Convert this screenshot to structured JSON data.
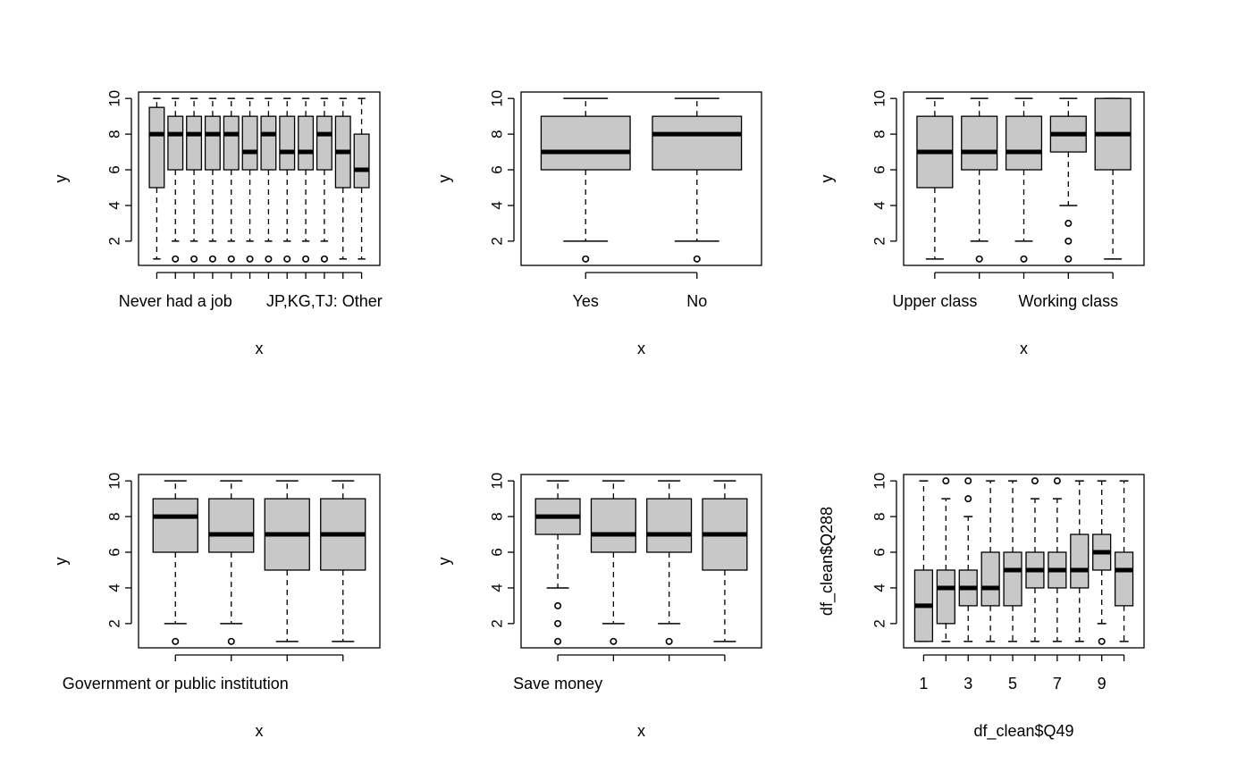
{
  "style": {
    "box_fill": "#c8c8c8",
    "stroke": "#000000",
    "background": "#ffffff"
  },
  "chart_data": [
    {
      "type": "boxplot",
      "xlabel": "x",
      "ylabel": "y",
      "ylim": [
        1,
        10
      ],
      "y_ticks": [
        2,
        4,
        6,
        8,
        10
      ],
      "tick_labels": [
        {
          "index": 1,
          "text": "Never had a job"
        },
        {
          "index": 9,
          "text": "JP,KG,TJ: Other"
        }
      ],
      "boxes": [
        {
          "low": 1,
          "q1": 5,
          "median": 8,
          "q3": 9.5,
          "high": 10,
          "outliers": []
        },
        {
          "low": 2,
          "q1": 6,
          "median": 8,
          "q3": 9,
          "high": 10,
          "outliers": [
            1
          ]
        },
        {
          "low": 2,
          "q1": 6,
          "median": 8,
          "q3": 9,
          "high": 10,
          "outliers": [
            1
          ]
        },
        {
          "low": 2,
          "q1": 6,
          "median": 8,
          "q3": 9,
          "high": 10,
          "outliers": [
            1
          ]
        },
        {
          "low": 2,
          "q1": 6,
          "median": 8,
          "q3": 9,
          "high": 10,
          "outliers": [
            1
          ]
        },
        {
          "low": 2,
          "q1": 6,
          "median": 7,
          "q3": 9,
          "high": 10,
          "outliers": [
            1
          ]
        },
        {
          "low": 2,
          "q1": 6,
          "median": 8,
          "q3": 9,
          "high": 10,
          "outliers": [
            1
          ]
        },
        {
          "low": 2,
          "q1": 6,
          "median": 7,
          "q3": 9,
          "high": 10,
          "outliers": [
            1
          ]
        },
        {
          "low": 2,
          "q1": 6,
          "median": 7,
          "q3": 9,
          "high": 10,
          "outliers": [
            1
          ]
        },
        {
          "low": 2,
          "q1": 6,
          "median": 8,
          "q3": 9,
          "high": 10,
          "outliers": [
            1
          ]
        },
        {
          "low": 1,
          "q1": 5,
          "median": 7,
          "q3": 9,
          "high": 10,
          "outliers": []
        },
        {
          "low": 1,
          "q1": 5,
          "median": 6,
          "q3": 8,
          "high": 10,
          "outliers": []
        }
      ]
    },
    {
      "type": "boxplot",
      "xlabel": "x",
      "ylabel": "y",
      "ylim": [
        1,
        10
      ],
      "y_ticks": [
        2,
        4,
        6,
        8,
        10
      ],
      "tick_labels": [
        {
          "index": 0,
          "text": "Yes"
        },
        {
          "index": 1,
          "text": "No"
        }
      ],
      "boxes": [
        {
          "low": 2,
          "q1": 6,
          "median": 7,
          "q3": 9,
          "high": 10,
          "outliers": [
            1
          ]
        },
        {
          "low": 2,
          "q1": 6,
          "median": 8,
          "q3": 9,
          "high": 10,
          "outliers": [
            1
          ]
        }
      ]
    },
    {
      "type": "boxplot",
      "xlabel": "x",
      "ylabel": "y",
      "ylim": [
        1,
        10
      ],
      "y_ticks": [
        2,
        4,
        6,
        8,
        10
      ],
      "tick_labels": [
        {
          "index": 0,
          "text": "Upper class"
        },
        {
          "index": 3,
          "text": "Working class"
        }
      ],
      "boxes": [
        {
          "low": 1,
          "q1": 5,
          "median": 7,
          "q3": 9,
          "high": 10,
          "outliers": []
        },
        {
          "low": 2,
          "q1": 6,
          "median": 7,
          "q3": 9,
          "high": 10,
          "outliers": [
            1
          ]
        },
        {
          "low": 2,
          "q1": 6,
          "median": 7,
          "q3": 9,
          "high": 10,
          "outliers": [
            1
          ]
        },
        {
          "low": 4,
          "q1": 7,
          "median": 8,
          "q3": 9,
          "high": 10,
          "outliers": [
            1,
            2,
            3
          ]
        },
        {
          "low": 1,
          "q1": 6,
          "median": 8,
          "q3": 10,
          "high": 10,
          "outliers": []
        }
      ]
    },
    {
      "type": "boxplot",
      "xlabel": "x",
      "ylabel": "y",
      "ylim": [
        1,
        10
      ],
      "y_ticks": [
        2,
        4,
        6,
        8,
        10
      ],
      "tick_labels": [
        {
          "index": 0,
          "text": "Government or public institution"
        }
      ],
      "boxes": [
        {
          "low": 2,
          "q1": 6,
          "median": 8,
          "q3": 9,
          "high": 10,
          "outliers": [
            1
          ]
        },
        {
          "low": 2,
          "q1": 6,
          "median": 7,
          "q3": 9,
          "high": 10,
          "outliers": [
            1
          ]
        },
        {
          "low": 1,
          "q1": 5,
          "median": 7,
          "q3": 9,
          "high": 10,
          "outliers": []
        },
        {
          "low": 1,
          "q1": 5,
          "median": 7,
          "q3": 9,
          "high": 10,
          "outliers": []
        }
      ]
    },
    {
      "type": "boxplot",
      "xlabel": "x",
      "ylabel": "y",
      "ylim": [
        1,
        10
      ],
      "y_ticks": [
        2,
        4,
        6,
        8,
        10
      ],
      "tick_labels": [
        {
          "index": 0,
          "text": "Save money"
        }
      ],
      "boxes": [
        {
          "low": 4,
          "q1": 7,
          "median": 8,
          "q3": 9,
          "high": 10,
          "outliers": [
            1,
            2,
            3
          ]
        },
        {
          "low": 2,
          "q1": 6,
          "median": 7,
          "q3": 9,
          "high": 10,
          "outliers": [
            1
          ]
        },
        {
          "low": 2,
          "q1": 6,
          "median": 7,
          "q3": 9,
          "high": 10,
          "outliers": [
            1
          ]
        },
        {
          "low": 1,
          "q1": 5,
          "median": 7,
          "q3": 9,
          "high": 10,
          "outliers": []
        }
      ]
    },
    {
      "type": "boxplot",
      "xlabel": "df_clean$Q49",
      "ylabel": "df_clean$Q288",
      "ylim": [
        1,
        10
      ],
      "y_ticks": [
        2,
        4,
        6,
        8,
        10
      ],
      "tick_labels": [
        {
          "index": 0,
          "text": "1"
        },
        {
          "index": 2,
          "text": "3"
        },
        {
          "index": 4,
          "text": "5"
        },
        {
          "index": 6,
          "text": "7"
        },
        {
          "index": 8,
          "text": "9"
        }
      ],
      "boxes": [
        {
          "low": 1,
          "q1": 1,
          "median": 3,
          "q3": 5,
          "high": 10,
          "outliers": []
        },
        {
          "low": 1,
          "q1": 2,
          "median": 4,
          "q3": 5,
          "high": 9,
          "outliers": [
            10
          ]
        },
        {
          "low": 1,
          "q1": 3,
          "median": 4,
          "q3": 5,
          "high": 8,
          "outliers": [
            9,
            10
          ]
        },
        {
          "low": 1,
          "q1": 3,
          "median": 4,
          "q3": 6,
          "high": 10,
          "outliers": []
        },
        {
          "low": 1,
          "q1": 3,
          "median": 5,
          "q3": 6,
          "high": 10,
          "outliers": []
        },
        {
          "low": 1,
          "q1": 4,
          "median": 5,
          "q3": 6,
          "high": 9,
          "outliers": [
            10
          ]
        },
        {
          "low": 1,
          "q1": 4,
          "median": 5,
          "q3": 6,
          "high": 9,
          "outliers": [
            10
          ]
        },
        {
          "low": 1,
          "q1": 4,
          "median": 5,
          "q3": 7,
          "high": 10,
          "outliers": []
        },
        {
          "low": 2,
          "q1": 5,
          "median": 6,
          "q3": 7,
          "high": 10,
          "outliers": [
            1
          ]
        },
        {
          "low": 1,
          "q1": 3,
          "median": 5,
          "q3": 6,
          "high": 10,
          "outliers": []
        }
      ]
    }
  ]
}
